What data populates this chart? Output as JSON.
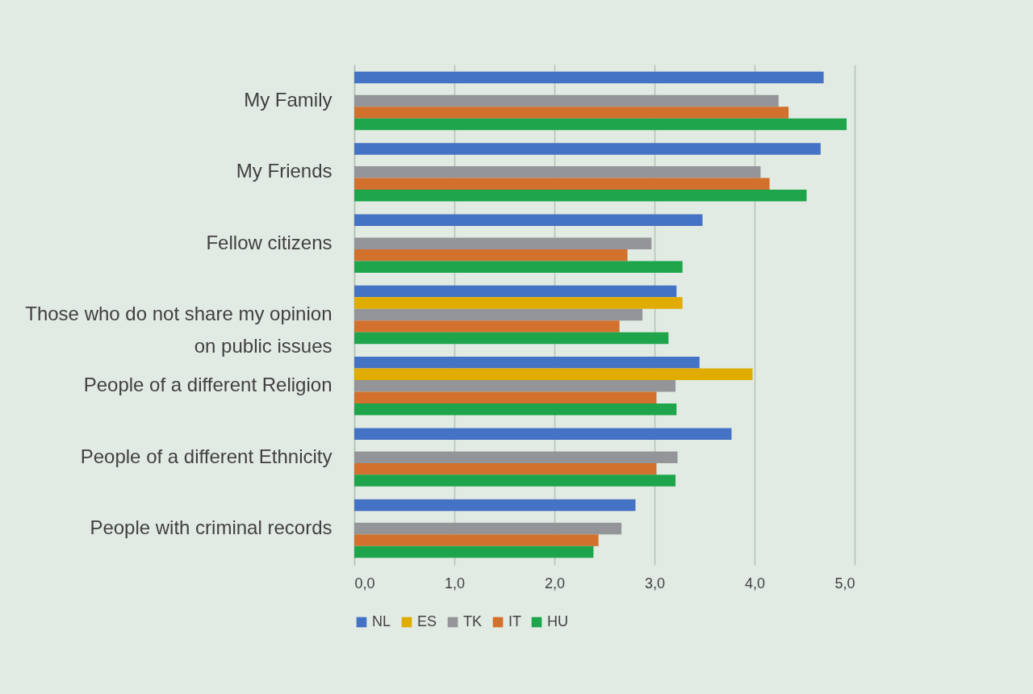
{
  "chart_data": {
    "type": "bar",
    "orientation": "horizontal",
    "categories": [
      "My Family",
      "My Friends",
      "Fellow citizens",
      "Those who do not share my opinion on public issues",
      "People of a different Religion",
      "People of a different Ethnicity",
      "People with criminal records"
    ],
    "series": [
      {
        "name": "NL",
        "color": "#4472c4",
        "values": [
          4.69,
          4.66,
          3.48,
          3.22,
          3.45,
          3.77,
          2.81
        ]
      },
      {
        "name": "ES",
        "color": "#e0ac00",
        "values": [
          null,
          null,
          null,
          3.28,
          3.98,
          null,
          null
        ]
      },
      {
        "name": "TK",
        "color": "#939598",
        "values": [
          4.24,
          4.06,
          2.97,
          2.88,
          3.21,
          3.23,
          2.67
        ]
      },
      {
        "name": "IT",
        "color": "#d2712d",
        "values": [
          4.34,
          4.15,
          2.73,
          2.65,
          3.02,
          3.02,
          2.44
        ]
      },
      {
        "name": "HU",
        "color": "#1ea54c",
        "values": [
          4.92,
          4.52,
          3.28,
          3.14,
          3.22,
          3.21,
          2.39
        ]
      }
    ],
    "xlim": [
      0,
      5
    ],
    "xticks": [
      {
        "value": 0,
        "label": "0,0"
      },
      {
        "value": 1,
        "label": "1,0"
      },
      {
        "value": 2,
        "label": "2,0"
      },
      {
        "value": 3,
        "label": "3,0"
      },
      {
        "value": 4,
        "label": "4,0"
      },
      {
        "value": 5,
        "label": "5,0"
      }
    ],
    "grid": "x",
    "legend": "bottom"
  }
}
